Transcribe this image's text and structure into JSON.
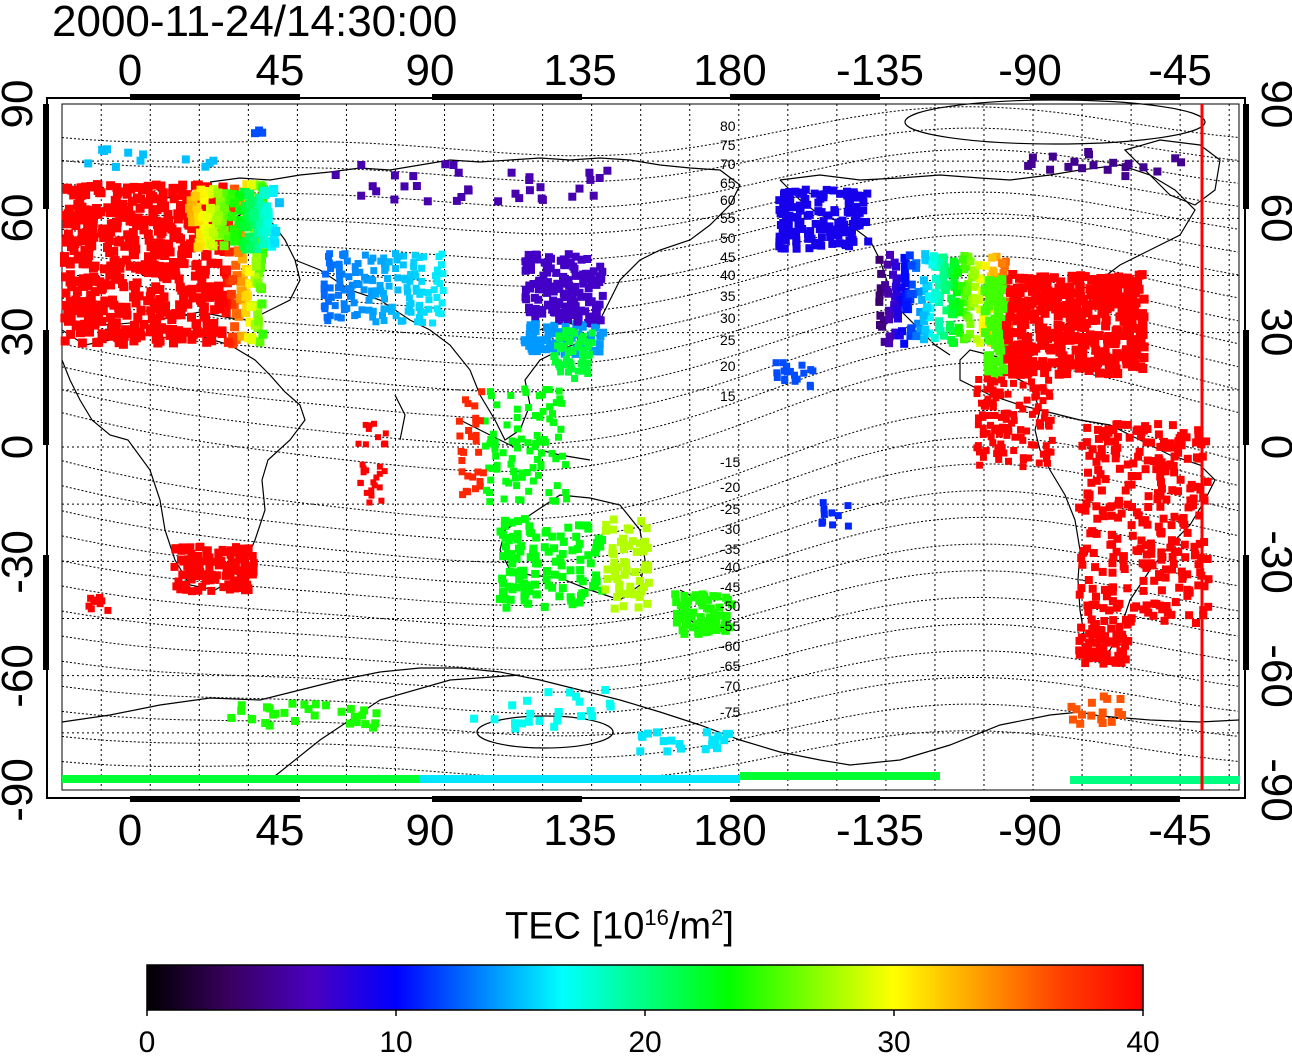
{
  "title": "2000-11-24/14:30:00",
  "top_axis_ticks": [
    "0",
    "45",
    "90",
    "135",
    "180",
    "-135",
    "-90",
    "-45"
  ],
  "bottom_axis_ticks": [
    "0",
    "45",
    "90",
    "135",
    "180",
    "-135",
    "-90",
    "-45"
  ],
  "left_axis_ticks": [
    "90",
    "60",
    "30",
    "0",
    "-30",
    "-60",
    "-90"
  ],
  "right_axis_ticks": [
    "90",
    "60",
    "30",
    "0",
    "-30",
    "-60",
    "-90"
  ],
  "contour_labels_north": [
    "80",
    "75",
    "70",
    "65",
    "60",
    "55",
    "50",
    "45",
    "40",
    "35",
    "30",
    "25",
    "20",
    "15"
  ],
  "contour_labels_south": [
    "-15",
    "-20",
    "-25",
    "-30",
    "-35",
    "-40",
    "-45",
    "-50",
    "-55",
    "-60",
    "-65",
    "-70",
    "-75"
  ],
  "colorbar": {
    "label_main": "TEC  [10",
    "label_sup1": "16",
    "label_mid": "/m",
    "label_sup2": "2",
    "label_end": "]",
    "ticks": [
      "0",
      "10",
      "20",
      "30",
      "40"
    ],
    "range": [
      0,
      40
    ],
    "colors": [
      "#000000",
      "#3a0060",
      "#4a00c0",
      "#0000ff",
      "#0080ff",
      "#00ffff",
      "#00ff80",
      "#00ff00",
      "#80ff00",
      "#ffff00",
      "#ffa000",
      "#ff4000",
      "#ff0000"
    ]
  },
  "map": {
    "lon_range_left_to_right": "-27 to 333",
    "lat_range": [
      -90,
      90
    ],
    "terminator_line_color": "#ff0000"
  }
}
